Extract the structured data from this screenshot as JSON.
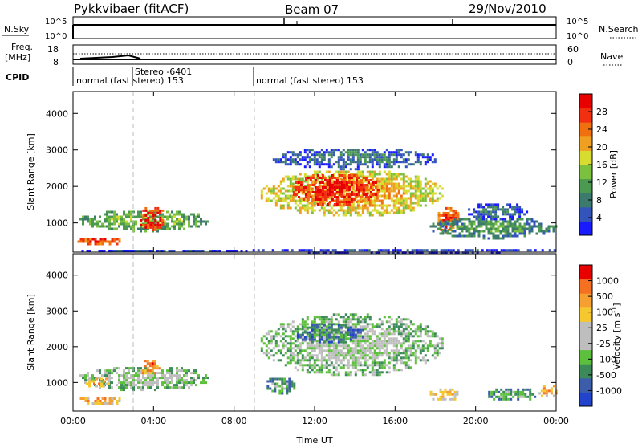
{
  "header": {
    "station": "Pykkvibaer (fitACF)",
    "beam": "Beam 07",
    "date": "29/Nov/2010"
  },
  "top_panels": {
    "nsky_label": "N.Sky",
    "nsearch_label": "N.Search",
    "nsky_ticks": [
      "10^5",
      "10^0"
    ],
    "nsky_right_ticks": [
      "10^5",
      "10^0"
    ],
    "freq_label": "Freq.",
    "freq_unit": "[MHz]",
    "freq_ticks": [
      "18",
      "8"
    ],
    "nave_label": "Nave",
    "nave_ticks": [
      "60",
      "0"
    ],
    "cpid_label": "CPID",
    "cpid_segments": [
      {
        "start": 0.0,
        "text": "normal (fast stereo) 153"
      },
      {
        "start": 3.0,
        "text": "Stereo -6401"
      },
      {
        "start": 9.0,
        "text": "normal (fast stereo) 153"
      }
    ]
  },
  "chart_data": [
    {
      "type": "heatmap",
      "name": "power",
      "ylabel": "Slant Range [km]",
      "xlabel": "",
      "x_range": [
        0,
        24
      ],
      "y_range": [
        200,
        4600
      ],
      "yticks": [
        1000,
        2000,
        3000,
        4000
      ],
      "colorbar": {
        "label": "Power [dB]",
        "ticks": [
          "28",
          "24",
          "20",
          "16",
          "12",
          "8",
          "4"
        ],
        "colors": [
          "#1a1aff",
          "#3355bb",
          "#3c7a6e",
          "#4c9a52",
          "#7cc040",
          "#d8dc30",
          "#f0a020",
          "#f07010",
          "#f03010",
          "#e80000"
        ]
      },
      "regions": [
        {
          "t0": 0.1,
          "t1": 2.4,
          "r0": 400,
          "r1": 650,
          "level": 8
        },
        {
          "t0": 0.2,
          "t1": 6.8,
          "r0": 800,
          "r1": 1400,
          "level": 4
        },
        {
          "t0": 3.2,
          "t1": 4.6,
          "r0": 800,
          "r1": 1500,
          "level": 9
        },
        {
          "t0": 0.3,
          "t1": 8.8,
          "r0": 200,
          "r1": 320,
          "level": 1
        },
        {
          "t0": 9.2,
          "t1": 18.4,
          "r0": 1200,
          "r1": 2500,
          "level": 6
        },
        {
          "t0": 10.8,
          "t1": 15.2,
          "r0": 1500,
          "r1": 2400,
          "level": 9
        },
        {
          "t0": 9.8,
          "t1": 18.2,
          "r0": 2500,
          "r1": 3100,
          "level": 2
        },
        {
          "t0": 18.0,
          "t1": 19.2,
          "r0": 700,
          "r1": 1500,
          "level": 8
        },
        {
          "t0": 17.6,
          "t1": 24.0,
          "r0": 600,
          "r1": 1200,
          "level": 3
        },
        {
          "t0": 19.5,
          "t1": 22.5,
          "r0": 1100,
          "r1": 1600,
          "level": 2
        },
        {
          "t0": 8.8,
          "t1": 24.0,
          "r0": 200,
          "r1": 350,
          "level": 1
        }
      ]
    },
    {
      "type": "heatmap",
      "name": "velocity",
      "ylabel": "Slant Range [km]",
      "xlabel": "Time UT",
      "x_range": [
        0,
        24
      ],
      "y_range": [
        200,
        4600
      ],
      "yticks": [
        1000,
        2000,
        3000,
        4000
      ],
      "xticks": [
        "00:00",
        "04:00",
        "08:00",
        "12:00",
        "16:00",
        "20:00",
        "00:00"
      ],
      "colorbar": {
        "label": "Velocity [m s^-1]",
        "ticks": [
          "1000",
          "500",
          "100",
          "25",
          "-25",
          "-100",
          "-500",
          "-1000"
        ],
        "colors": [
          "#2244cc",
          "#3c5eaa",
          "#3c8a5a",
          "#5cc03c",
          "#bebebe",
          "#bebebe",
          "#f5c830",
          "#f5a030",
          "#f57020",
          "#e80000"
        ]
      },
      "regions": [
        {
          "t0": 0.1,
          "t1": 2.4,
          "r0": 400,
          "r1": 650,
          "level": 7
        },
        {
          "t0": 0.2,
          "t1": 6.8,
          "r0": 800,
          "r1": 1500,
          "level": 4
        },
        {
          "t0": 0.4,
          "t1": 2.0,
          "r0": 900,
          "r1": 1200,
          "level": 7
        },
        {
          "t0": 3.3,
          "t1": 4.3,
          "r0": 1200,
          "r1": 1700,
          "level": 8
        },
        {
          "t0": 9.2,
          "t1": 18.4,
          "r0": 1200,
          "r1": 3000,
          "level": 4
        },
        {
          "t0": 11.0,
          "t1": 14.5,
          "r0": 2100,
          "r1": 2700,
          "level": 2
        },
        {
          "t0": 9.5,
          "t1": 11.0,
          "r0": 700,
          "r1": 1200,
          "level": 3
        },
        {
          "t0": 17.6,
          "t1": 19.2,
          "r0": 500,
          "r1": 900,
          "level": 6
        },
        {
          "t0": 20.5,
          "t1": 23.0,
          "r0": 500,
          "r1": 900,
          "level": 3
        },
        {
          "t0": 23.0,
          "t1": 24.0,
          "r0": 600,
          "r1": 1000,
          "level": 7
        }
      ]
    }
  ]
}
